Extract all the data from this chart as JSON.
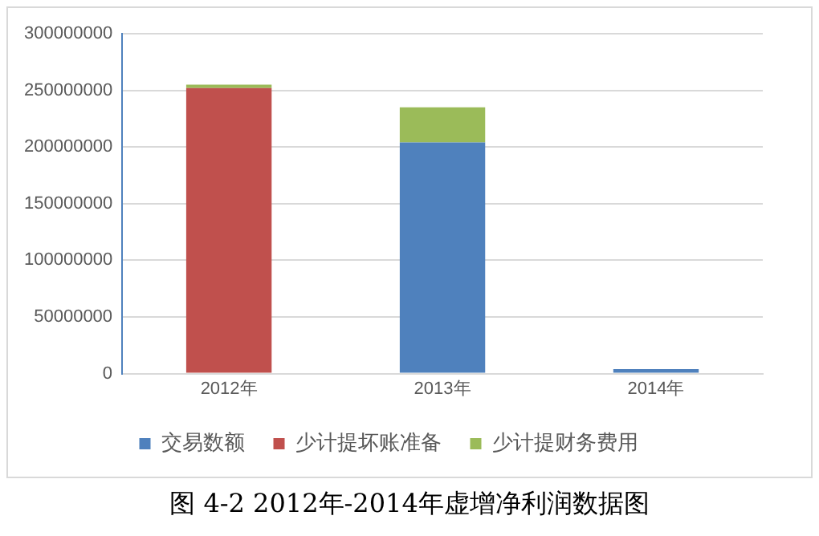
{
  "chart_data": {
    "type": "bar",
    "title": "图 4-2 2012年-2014年虚增净利润数据图",
    "categories": [
      "2012年",
      "2013年",
      "2014年"
    ],
    "stacked": true,
    "series": [
      {
        "name": "交易数额",
        "color": "#4f81bd",
        "values": [
          0,
          204000000,
          4000000
        ]
      },
      {
        "name": "少计提坏账准备",
        "color": "#c0504d",
        "values": [
          252000000,
          0,
          0
        ]
      },
      {
        "name": "少计提财务费用",
        "color": "#9bbb59",
        "values": [
          3000000,
          31000000,
          0
        ]
      }
    ],
    "ylim": [
      0,
      300000000
    ],
    "yticks": [
      0,
      50000000,
      100000000,
      150000000,
      200000000,
      250000000,
      300000000
    ],
    "grid": "y",
    "legend": "bottom"
  }
}
